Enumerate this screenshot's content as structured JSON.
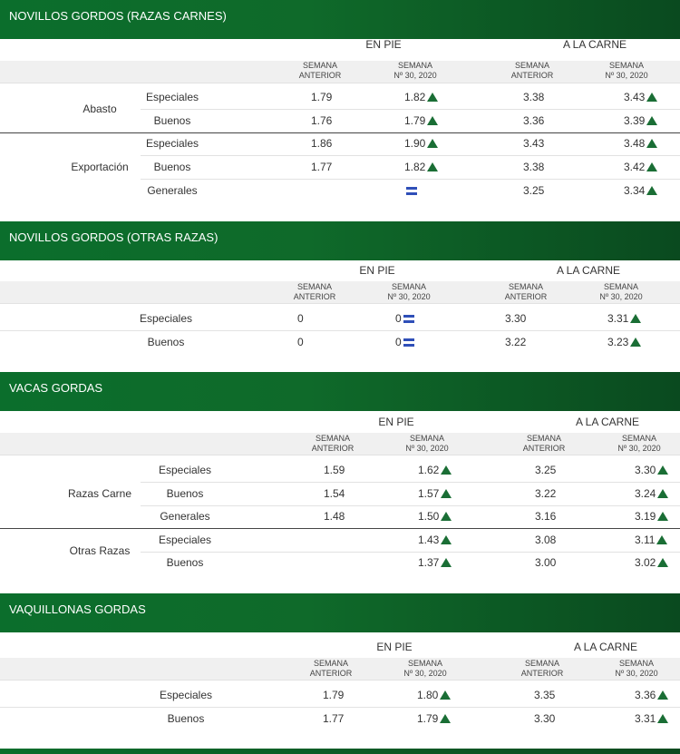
{
  "labels": {
    "en_pie": "EN PIE",
    "a_la_carne": "A LA CARNE",
    "semana": "SEMANA",
    "anterior": "ANTERIOR",
    "numero_semana": "Nº 30, 2020"
  },
  "sections": [
    {
      "title": "NOVILLOS GORDOS (RAZAS CARNES)",
      "groups": [
        {
          "name": "Abasto",
          "rows": [
            {
              "label": "Especiales",
              "pie_ant": "1.79",
              "pie_act": "1.82",
              "pie_trend": "up",
              "carne_ant": "3.38",
              "carne_act": "3.43",
              "carne_trend": "up"
            },
            {
              "label": "Buenos",
              "pie_ant": "1.76",
              "pie_act": "1.79",
              "pie_trend": "up",
              "carne_ant": "3.36",
              "carne_act": "3.39",
              "carne_trend": "up"
            }
          ]
        },
        {
          "name": "Exportación",
          "rows": [
            {
              "label": "Especiales",
              "pie_ant": "1.86",
              "pie_act": "1.90",
              "pie_trend": "up",
              "carne_ant": "3.43",
              "carne_act": "3.48",
              "carne_trend": "up"
            },
            {
              "label": "Buenos",
              "pie_ant": "1.77",
              "pie_act": "1.82",
              "pie_trend": "up",
              "carne_ant": "3.38",
              "carne_act": "3.42",
              "carne_trend": "up"
            },
            {
              "label": "Generales",
              "pie_ant": "",
              "pie_act": "",
              "pie_trend": "equal",
              "carne_ant": "3.25",
              "carne_act": "3.34",
              "carne_trend": "up"
            }
          ]
        }
      ]
    },
    {
      "title": "NOVILLOS GORDOS (OTRAS RAZAS)",
      "rows": [
        {
          "label": "Especiales",
          "pie_ant": "0",
          "pie_act": "0",
          "pie_trend": "equal",
          "carne_ant": "3.30",
          "carne_act": "3.31",
          "carne_trend": "up"
        },
        {
          "label": "Buenos",
          "pie_ant": "0",
          "pie_act": "0",
          "pie_trend": "equal",
          "carne_ant": "3.22",
          "carne_act": "3.23",
          "carne_trend": "up"
        }
      ]
    },
    {
      "title": "VACAS GORDAS",
      "groups": [
        {
          "name": "Razas Carne",
          "rows": [
            {
              "label": "Especiales",
              "pie_ant": "1.59",
              "pie_act": "1.62",
              "pie_trend": "up",
              "carne_ant": "3.25",
              "carne_act": "3.30",
              "carne_trend": "up"
            },
            {
              "label": "Buenos",
              "pie_ant": "1.54",
              "pie_act": "1.57",
              "pie_trend": "up",
              "carne_ant": "3.22",
              "carne_act": "3.24",
              "carne_trend": "up"
            },
            {
              "label": "Generales",
              "pie_ant": "1.48",
              "pie_act": "1.50",
              "pie_trend": "up",
              "carne_ant": "3.16",
              "carne_act": "3.19",
              "carne_trend": "up"
            }
          ]
        },
        {
          "name": "Otras Razas",
          "rows": [
            {
              "label": "Especiales",
              "pie_ant": "",
              "pie_act": "1.43",
              "pie_trend": "up",
              "carne_ant": "3.08",
              "carne_act": "3.11",
              "carne_trend": "up"
            },
            {
              "label": "Buenos",
              "pie_ant": "",
              "pie_act": "1.37",
              "pie_trend": "up",
              "carne_ant": "3.00",
              "carne_act": "3.02",
              "carne_trend": "up"
            }
          ]
        }
      ]
    },
    {
      "title": "VAQUILLONAS GORDAS",
      "rows": [
        {
          "label": "Especiales",
          "pie_ant": "1.79",
          "pie_act": "1.80",
          "pie_trend": "up",
          "carne_ant": "3.35",
          "carne_act": "3.36",
          "carne_trend": "up"
        },
        {
          "label": "Buenos",
          "pie_ant": "1.77",
          "pie_act": "1.79",
          "pie_trend": "up",
          "carne_ant": "3.30",
          "carne_act": "3.31",
          "carne_trend": "up"
        }
      ]
    }
  ],
  "colors": {
    "header_green": "#0b6e2c",
    "trend_up": "#1a6e35",
    "trend_equal": "#2f4fb8"
  },
  "icons": {
    "up": "triangle-up-icon",
    "equal": "equal-icon"
  }
}
